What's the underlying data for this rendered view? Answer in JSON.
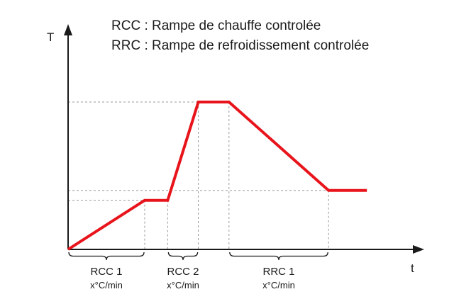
{
  "legend": {
    "rcc": "RCC : Rampe de chauffe controlée",
    "rrc": "RRC : Rampe de refroidissement controlée"
  },
  "axes": {
    "y_label": "T",
    "x_label": "t"
  },
  "profile": {
    "color": "#e8141b",
    "points": [
      [
        0,
        0
      ],
      [
        1,
        1
      ],
      [
        1.3,
        1
      ],
      [
        1.7,
        3
      ],
      [
        2.1,
        3
      ],
      [
        3.4,
        1.2
      ],
      [
        3.9,
        1.2
      ]
    ],
    "guide_levels": [
      1,
      1.2,
      3
    ]
  },
  "segments": [
    {
      "name": "RCC 1",
      "rate": "x°C/min",
      "start": 0,
      "end": 1
    },
    {
      "name": "RCC 2",
      "rate": "x°C/min",
      "start": 1.3,
      "end": 1.7
    },
    {
      "name": "RRC 1",
      "rate": "x°C/min",
      "start": 2.1,
      "end": 3.4
    }
  ]
}
